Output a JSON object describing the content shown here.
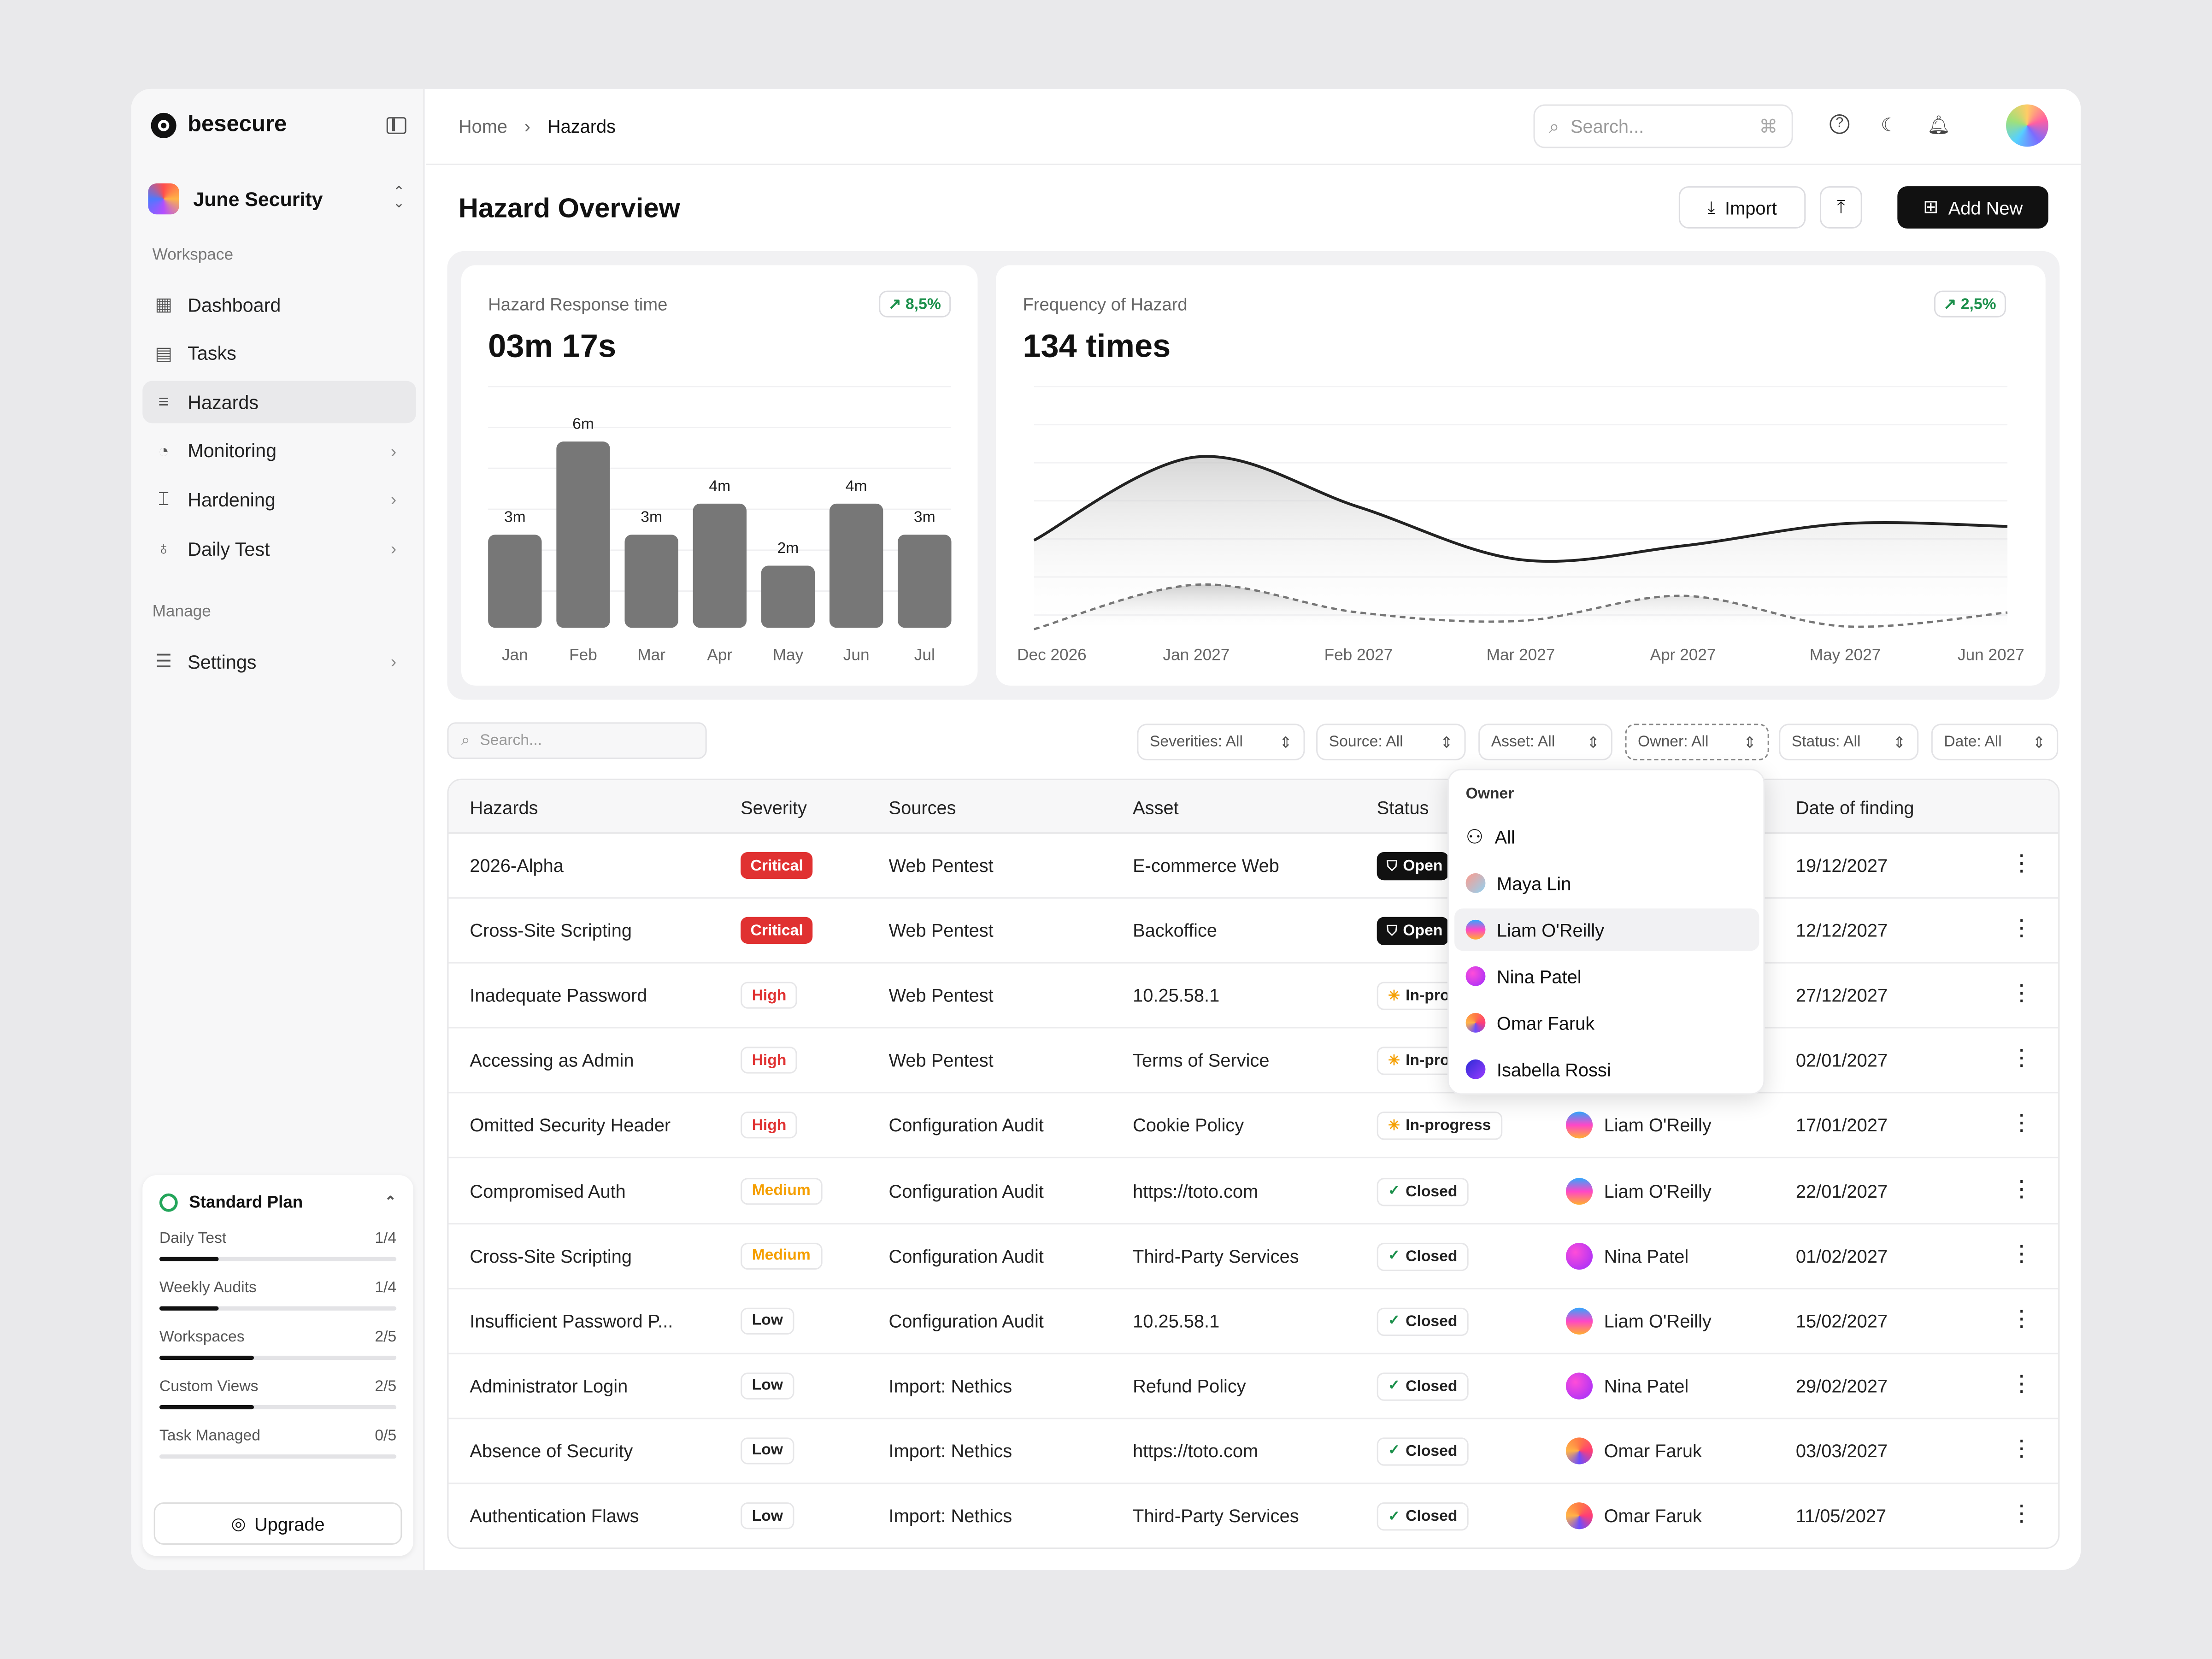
{
  "app": {
    "name": "besecure"
  },
  "workspace": {
    "name": "June Security"
  },
  "sidebar": {
    "section_workspace": "Workspace",
    "section_manage": "Manage",
    "items": [
      {
        "label": "Dashboard",
        "icon": "grid-icon"
      },
      {
        "label": "Tasks",
        "icon": "tasks-icon"
      },
      {
        "label": "Hazards",
        "icon": "hazards-icon",
        "active": true
      },
      {
        "label": "Monitoring",
        "icon": "gauge-icon",
        "has_children": true
      },
      {
        "label": "Hardening",
        "icon": "anvil-icon",
        "has_children": true
      },
      {
        "label": "Daily Test",
        "icon": "stethoscope-icon",
        "has_children": true
      }
    ],
    "manage_items": [
      {
        "label": "Settings",
        "icon": "sliders-icon",
        "has_children": true
      }
    ]
  },
  "plan": {
    "title": "Standard Plan",
    "usage": [
      {
        "label": "Daily Test",
        "count": "1/4",
        "fraction": 0.25
      },
      {
        "label": "Weekly Audits",
        "count": "1/4",
        "fraction": 0.25
      },
      {
        "label": "Workspaces",
        "count": "2/5",
        "fraction": 0.4
      },
      {
        "label": "Custom Views",
        "count": "2/5",
        "fraction": 0.4
      },
      {
        "label": "Task Managed",
        "count": "0/5",
        "fraction": 0
      }
    ],
    "upgrade_label": "Upgrade"
  },
  "breadcrumb": {
    "home": "Home",
    "current": "Hazards"
  },
  "topbar": {
    "search_placeholder": "Search...",
    "shortcut": "⌘"
  },
  "page": {
    "title": "Hazard Overview",
    "import_label": "Import",
    "add_label": "Add New"
  },
  "cards": {
    "response": {
      "label": "Hazard Response time",
      "value": "03m 17s",
      "trend": "8,5%"
    },
    "frequency": {
      "label": "Frequency of Hazard",
      "value": "134 times",
      "trend": "2,5%"
    }
  },
  "chart_data": [
    {
      "type": "bar",
      "categories": [
        "Jan",
        "Feb",
        "Mar",
        "Apr",
        "May",
        "Jun",
        "Jul"
      ],
      "values": [
        3,
        6,
        3,
        4,
        2,
        4,
        3
      ],
      "data_labels": [
        "3m",
        "6m",
        "3m",
        "4m",
        "2m",
        "4m",
        "3m"
      ],
      "title": "Hazard Response time",
      "ylim": [
        0,
        6
      ]
    },
    {
      "type": "area",
      "x": [
        "Dec 2026",
        "Jan 2027",
        "Feb 2027",
        "Mar 2027",
        "Apr 2027",
        "May 2027",
        "Jun 2027"
      ],
      "series": [
        {
          "values": [
            32,
            62,
            44,
            25,
            30,
            38,
            37
          ],
          "style": "solid"
        },
        {
          "values": [
            0,
            16,
            6,
            3,
            12,
            1,
            6
          ],
          "style": "dashed"
        }
      ],
      "title": "Frequency of Hazard"
    }
  ],
  "filters": {
    "search_placeholder": "Search...",
    "pills": [
      "Severities: All",
      "Source: All",
      "Asset: All",
      "Owner: All",
      "Status: All",
      "Date: All"
    ]
  },
  "table": {
    "headers": [
      "Hazards",
      "Severity",
      "Sources",
      "Asset",
      "Status",
      "Owner",
      "Date of finding"
    ],
    "rows": [
      {
        "name": "2026-Alpha",
        "severity": "Critical",
        "sev_class": "critical",
        "source": "Web Pentest",
        "asset": "E-commerce Web",
        "status": "Open",
        "status_class": "open",
        "owner": "",
        "owner_av": "",
        "date": "19/12/2027"
      },
      {
        "name": "Cross-Site Scripting",
        "severity": "Critical",
        "sev_class": "critical",
        "source": "Web Pentest",
        "asset": "Backoffice",
        "status": "Open",
        "status_class": "open",
        "owner": "",
        "owner_av": "",
        "date": "12/12/2027"
      },
      {
        "name": "Inadequate Password",
        "severity": "High",
        "sev_class": "high",
        "source": "Web Pentest",
        "asset": "10.25.58.1",
        "status": "In-progress",
        "status_class": "inprog",
        "owner": "",
        "owner_av": "",
        "date": "27/12/2027"
      },
      {
        "name": "Accessing as Admin",
        "severity": "High",
        "sev_class": "high",
        "source": "Web Pentest",
        "asset": "Terms of Service",
        "status": "In-progress",
        "status_class": "inprog",
        "owner": "",
        "owner_av": "",
        "date": "02/01/2027"
      },
      {
        "name": "Omitted Security Header",
        "severity": "High",
        "sev_class": "high",
        "source": "Configuration Audit",
        "asset": "Cookie Policy",
        "status": "In-progress",
        "status_class": "inprog",
        "owner": "Liam O'Reilly",
        "owner_av": "g-liam",
        "date": "17/01/2027"
      },
      {
        "name": "Compromised Auth",
        "severity": "Medium",
        "sev_class": "medium",
        "source": "Configuration Audit",
        "asset": "https://toto.com",
        "status": "Closed",
        "status_class": "closed",
        "owner": "Liam O'Reilly",
        "owner_av": "g-liam",
        "date": "22/01/2027"
      },
      {
        "name": "Cross-Site Scripting",
        "severity": "Medium",
        "sev_class": "medium",
        "source": "Configuration Audit",
        "asset": "Third-Party Services",
        "status": "Closed",
        "status_class": "closed",
        "owner": "Nina Patel",
        "owner_av": "g-nina",
        "date": "01/02/2027"
      },
      {
        "name": "Insufficient Password P...",
        "severity": "Low",
        "sev_class": "low",
        "source": "Configuration Audit",
        "asset": "10.25.58.1",
        "status": "Closed",
        "status_class": "closed",
        "owner": "Liam O'Reilly",
        "owner_av": "g-liam",
        "date": "15/02/2027"
      },
      {
        "name": "Administrator Login",
        "severity": "Low",
        "sev_class": "low",
        "source": "Import: Nethics",
        "asset": "Refund Policy",
        "status": "Closed",
        "status_class": "closed",
        "owner": "Nina Patel",
        "owner_av": "g-nina",
        "date": "29/02/2027"
      },
      {
        "name": "Absence of Security",
        "severity": "Low",
        "sev_class": "low",
        "source": "Import: Nethics",
        "asset": "https://toto.com",
        "status": "Closed",
        "status_class": "closed",
        "owner": "Omar Faruk",
        "owner_av": "g-omar",
        "date": "03/03/2027"
      },
      {
        "name": "Authentication Flaws",
        "severity": "Low",
        "sev_class": "low",
        "source": "Import: Nethics",
        "asset": "Third-Party Services",
        "status": "Closed",
        "status_class": "closed",
        "owner": "Omar Faruk",
        "owner_av": "g-omar",
        "date": "11/05/2027"
      }
    ]
  },
  "owner_dropdown": {
    "header": "Owner",
    "items": [
      {
        "label": "All",
        "av": "all"
      },
      {
        "label": "Maya Lin",
        "av": "g-maya"
      },
      {
        "label": "Liam O'Reilly",
        "av": "g-liam",
        "highlighted": true
      },
      {
        "label": "Nina Patel",
        "av": "g-nina"
      },
      {
        "label": "Omar Faruk",
        "av": "g-omar"
      },
      {
        "label": "Isabella Rossi",
        "av": "g-isa"
      }
    ]
  }
}
